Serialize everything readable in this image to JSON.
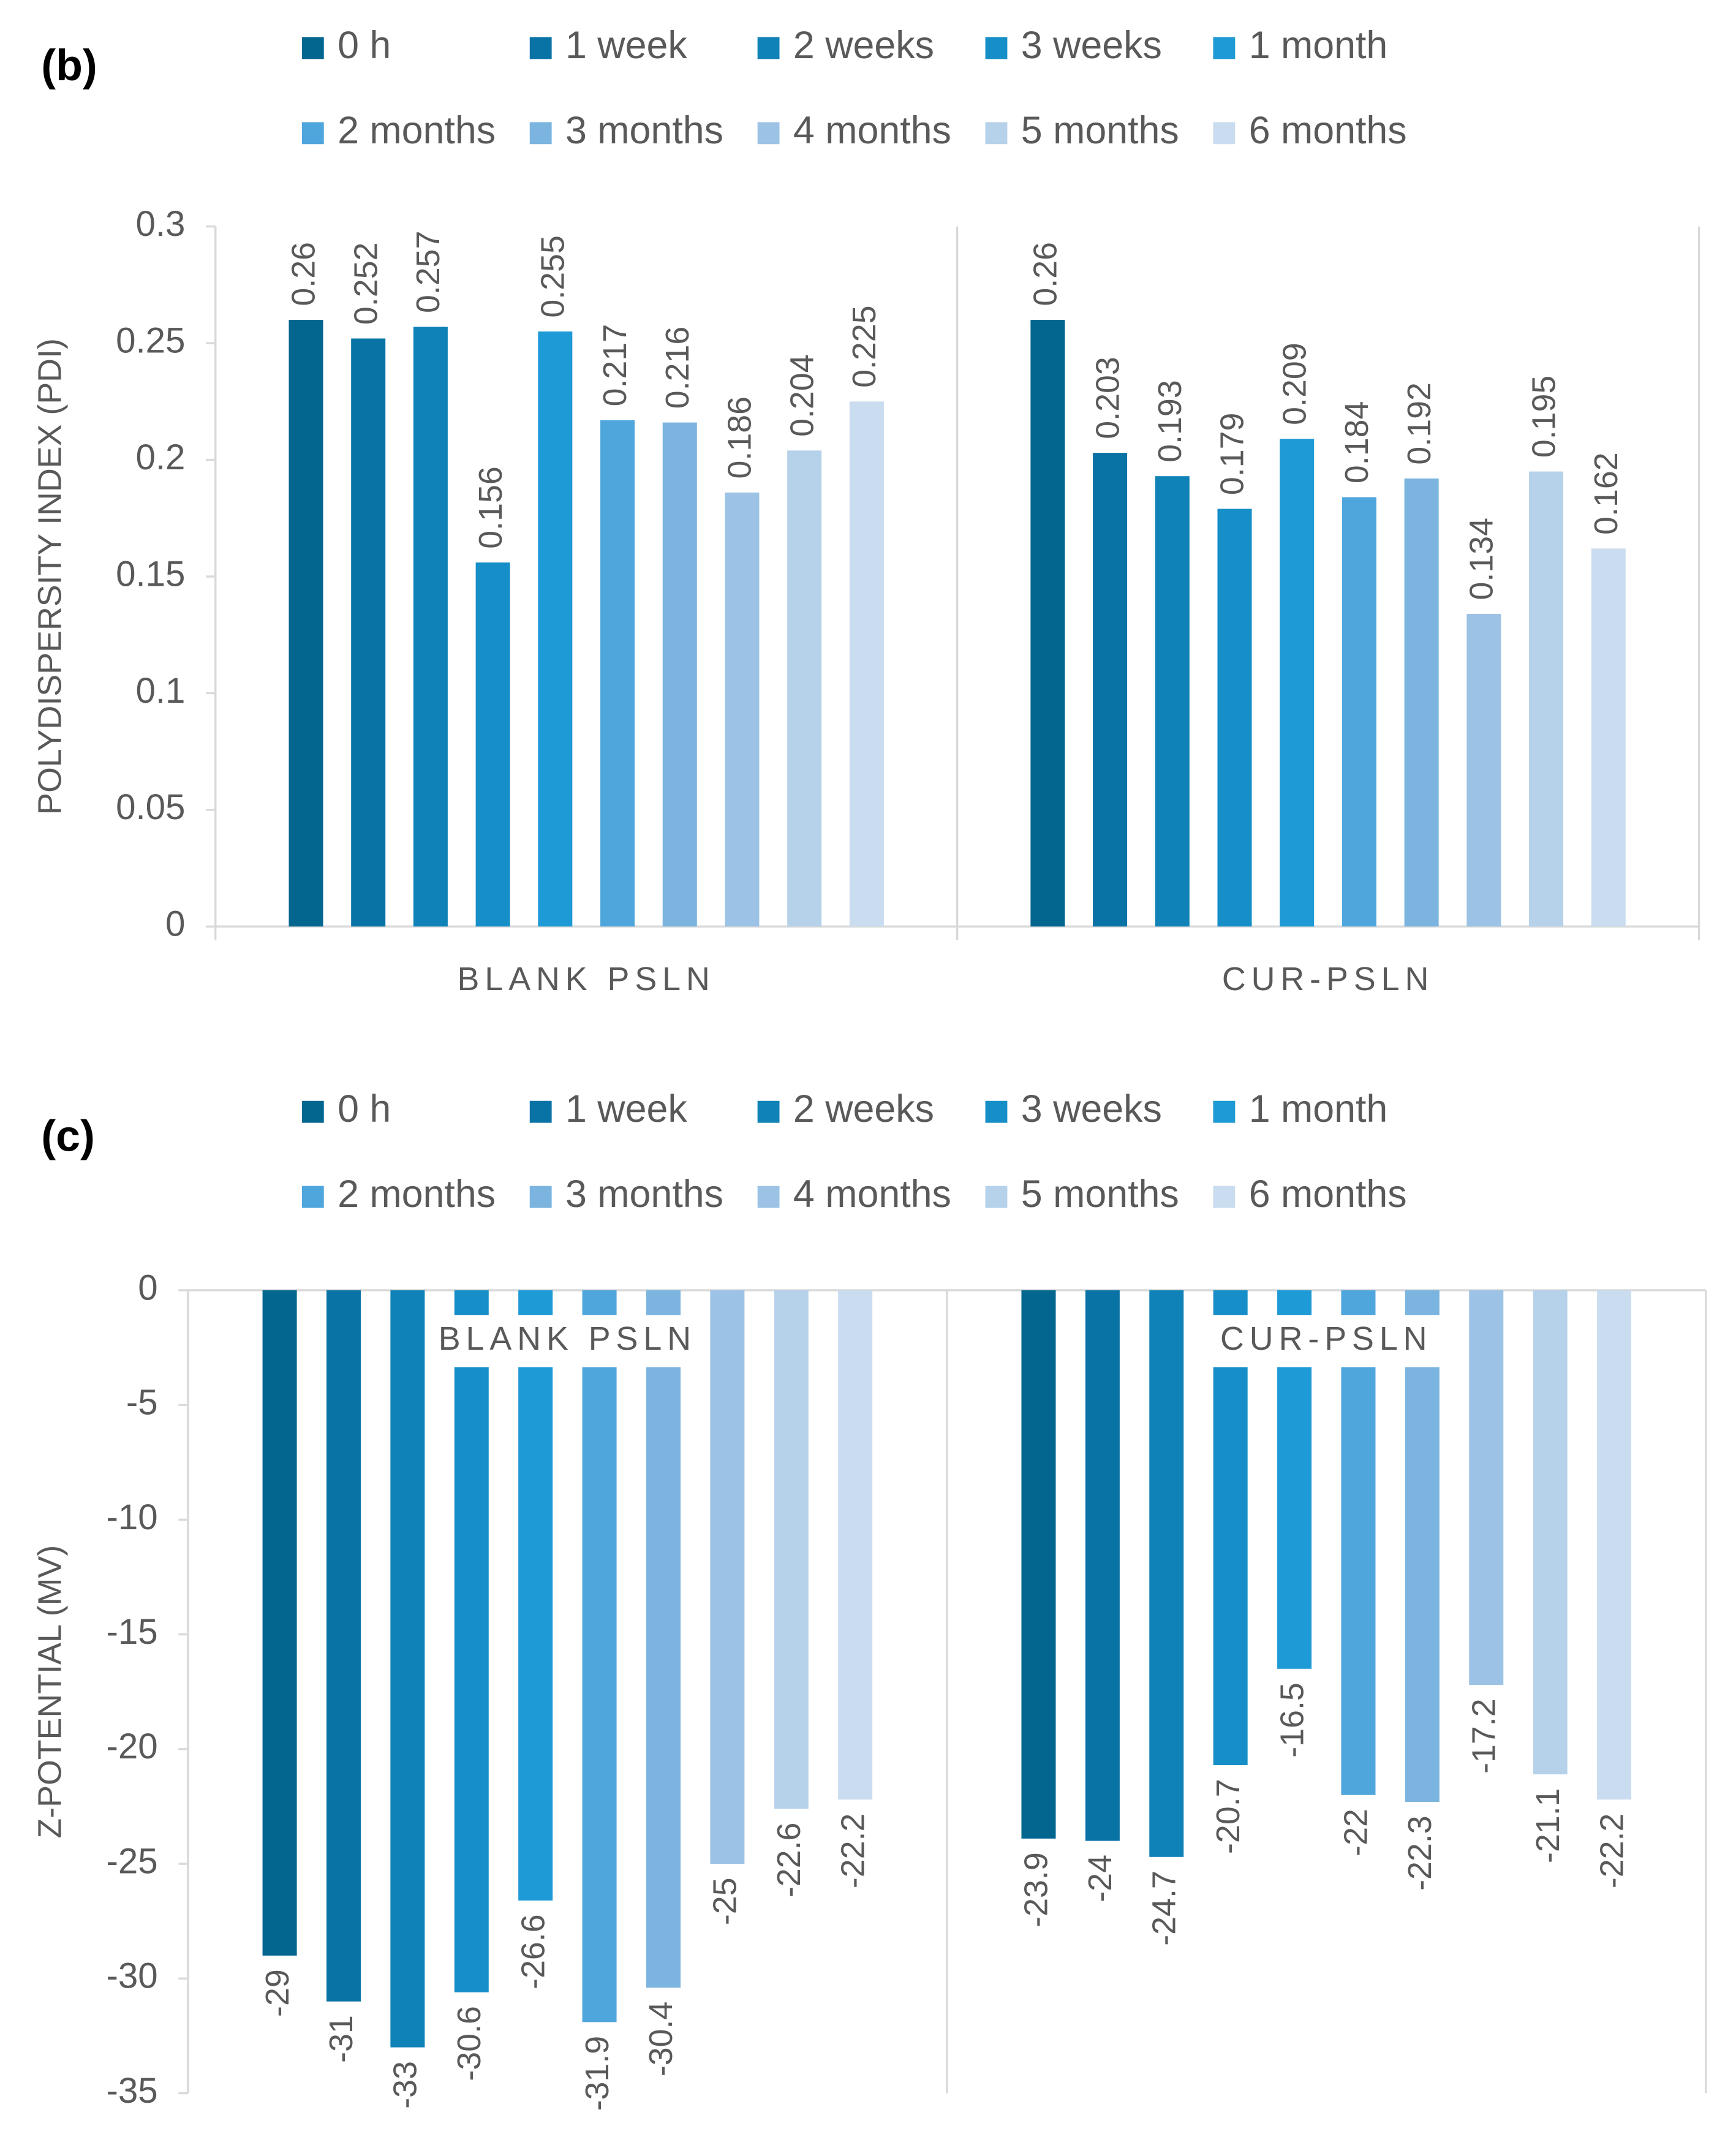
{
  "chart_data": [
    {
      "type": "bar",
      "panel_label": "(b)",
      "y_label": "POLYDISPERSITY INDEX (PDI)",
      "categories": [
        "BLANK PSLN",
        "CUR-PSLN"
      ],
      "ylim": [
        0,
        0.3
      ],
      "yticks": [
        0,
        0.05,
        0.1,
        0.15,
        0.2,
        0.25,
        0.3
      ],
      "series": [
        {
          "name": "0 h",
          "color": "#02668f",
          "values": [
            0.26,
            0.26
          ]
        },
        {
          "name": "1 week",
          "color": "#0a73a6",
          "values": [
            0.252,
            0.203
          ]
        },
        {
          "name": "2 weeks",
          "color": "#0f82b8",
          "values": [
            0.257,
            0.193
          ]
        },
        {
          "name": "3 weeks",
          "color": "#168ec7",
          "values": [
            0.156,
            0.179
          ]
        },
        {
          "name": "1 month",
          "color": "#1e9ad6",
          "values": [
            0.255,
            0.209
          ]
        },
        {
          "name": "2 months",
          "color": "#4fa6dc",
          "values": [
            0.217,
            0.184
          ]
        },
        {
          "name": "3 months",
          "color": "#7ab4df",
          "values": [
            0.216,
            0.192
          ]
        },
        {
          "name": "4 months",
          "color": "#9cc3e5",
          "values": [
            0.186,
            0.134
          ]
        },
        {
          "name": "5 months",
          "color": "#b6d1ea",
          "values": [
            0.204,
            0.195
          ]
        },
        {
          "name": "6 months",
          "color": "#cadcef",
          "values": [
            0.225,
            0.162
          ]
        }
      ]
    },
    {
      "type": "bar",
      "panel_label": "(c)",
      "y_label": "Z-POTENTIAL (MV)",
      "categories": [
        "BLANK PSLN",
        "CUR-PSLN"
      ],
      "ylim": [
        -35,
        0
      ],
      "yticks": [
        -35,
        -30,
        -25,
        -20,
        -15,
        -10,
        -5,
        0
      ],
      "series": [
        {
          "name": "0 h",
          "color": "#02668f",
          "values": [
            -29,
            -23.9
          ]
        },
        {
          "name": "1 week",
          "color": "#0a73a6",
          "values": [
            -31,
            -24
          ]
        },
        {
          "name": "2 weeks",
          "color": "#0f82b8",
          "values": [
            -33,
            -24.7
          ]
        },
        {
          "name": "3 weeks",
          "color": "#168ec7",
          "values": [
            -30.6,
            -20.7
          ]
        },
        {
          "name": "1 month",
          "color": "#1e9ad6",
          "values": [
            -26.6,
            -16.5
          ]
        },
        {
          "name": "2 months",
          "color": "#4fa6dc",
          "values": [
            -31.9,
            -22
          ]
        },
        {
          "name": "3 months",
          "color": "#7ab4df",
          "values": [
            -30.4,
            -22.3
          ]
        },
        {
          "name": "4 months",
          "color": "#9cc3e5",
          "values": [
            -25,
            -17.2
          ]
        },
        {
          "name": "5 months",
          "color": "#b6d1ea",
          "values": [
            -22.6,
            -21.1
          ]
        },
        {
          "name": "6 months",
          "color": "#cadcef",
          "values": [
            -22.2,
            -22.2
          ]
        }
      ]
    }
  ]
}
